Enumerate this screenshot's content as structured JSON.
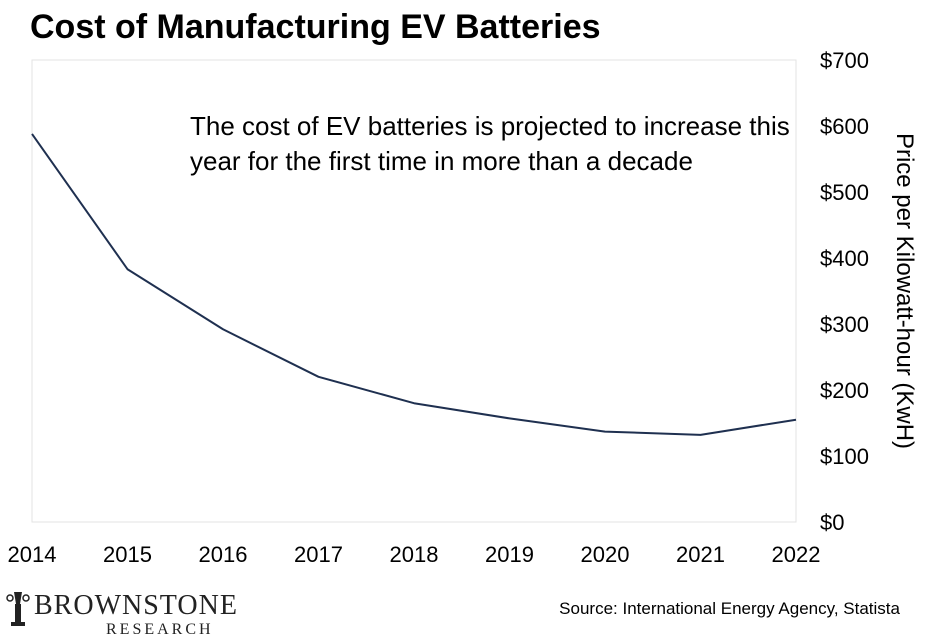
{
  "chart_data": {
    "type": "line",
    "title": "Cost of Manufacturing EV Batteries",
    "x": [
      "2014",
      "2015",
      "2016",
      "2017",
      "2018",
      "2019",
      "2020",
      "2021",
      "2022"
    ],
    "series": [
      {
        "values": [
          588,
          383,
          292,
          220,
          180,
          157,
          137,
          132,
          155
        ],
        "color": "#1f3050"
      }
    ],
    "ylabel": "Price per Kilowatt-hour (KwH)",
    "ylim": [
      0,
      700
    ],
    "y_ticks": [
      0,
      100,
      200,
      300,
      400,
      500,
      600,
      700
    ],
    "y_tick_labels": [
      "$0",
      "$100",
      "$200",
      "$300",
      "$400",
      "$500",
      "$600",
      "$700"
    ],
    "y_axis_position": "right",
    "grid": false,
    "annotation_lines": [
      "The cost of EV batteries is projected to increase this",
      "year for the first time in more than a decade"
    ]
  },
  "source": "Source: International Energy Agency, Statista",
  "logo": {
    "name": "BROWNSTONE",
    "sub": "RESEARCH"
  }
}
